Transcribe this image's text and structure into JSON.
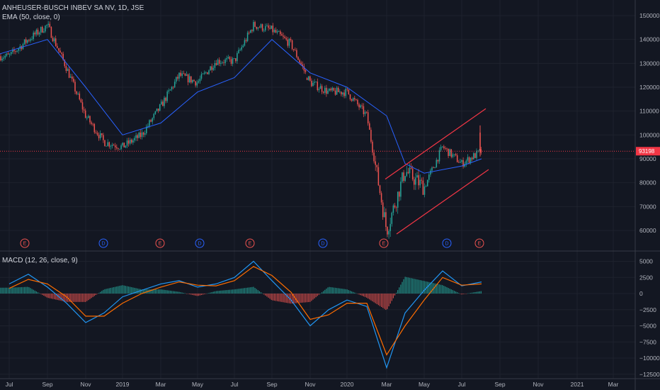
{
  "header": {
    "symbol": "ANHEUSER-BUSCH INBEV SA NV, 1D, JSE",
    "ema_label": "EMA (50, close, 0)",
    "macd_label": "MACD (12, 26, close, 9)"
  },
  "colors": {
    "background": "#131722",
    "up": "#26a69a",
    "down": "#ef5350",
    "ema": "#2962ff",
    "macd_line": "#2196f3",
    "signal_line": "#ff6d00",
    "price_line": "#f23645",
    "channel": "#f23645"
  },
  "chart_data": [
    {
      "type": "candlestick",
      "title": "ANHEUSER-BUSCH INBEV SA NV, 1D, JSE",
      "x_tick_labels": [
        "Jul",
        "Sep",
        "Nov",
        "2019",
        "Mar",
        "May",
        "Jul",
        "Sep",
        "Nov",
        "2020",
        "Mar",
        "May",
        "Jul",
        "Sep",
        "Nov",
        "2021",
        "Mar"
      ],
      "y_ticks": [
        60000,
        70000,
        80000,
        90000,
        100000,
        110000,
        120000,
        130000,
        140000,
        150000
      ],
      "y_tick_labels": [
        "60000",
        "70000",
        "80000",
        "90000",
        "100000",
        "110000",
        "120000",
        "130000",
        "140000",
        "150000"
      ],
      "ylim": [
        54000,
        152000
      ],
      "last_price": 93198,
      "last_price_label": "93198",
      "close_path": [
        [
          "Jul",
          133000
        ],
        [
          "Aug",
          140000
        ],
        [
          "Sep",
          146000
        ],
        [
          "Oct",
          128000
        ],
        [
          "Nov",
          108000
        ],
        [
          "Dec",
          97000
        ],
        [
          "2019",
          95000
        ],
        [
          "Feb",
          100000
        ],
        [
          "Mar",
          112000
        ],
        [
          "Apr",
          125000
        ],
        [
          "May",
          122000
        ],
        [
          "Jun",
          131000
        ],
        [
          "Jul",
          131000
        ],
        [
          "Aug",
          146000
        ],
        [
          "Sep",
          144000
        ],
        [
          "Oct",
          138000
        ],
        [
          "Nov",
          122000
        ],
        [
          "Dec",
          118000
        ],
        [
          "2020",
          118000
        ],
        [
          "Feb",
          108000
        ],
        [
          "Mar",
          60000
        ],
        [
          "Apr",
          85000
        ],
        [
          "May",
          78000
        ],
        [
          "Jun",
          95000
        ],
        [
          "Jul",
          88000
        ],
        [
          "Aug",
          93198
        ]
      ],
      "ema_path": [
        [
          "Jul",
          134000
        ],
        [
          "Sep",
          140000
        ],
        [
          "Nov",
          120000
        ],
        [
          "2019",
          100000
        ],
        [
          "Mar",
          105000
        ],
        [
          "May",
          118000
        ],
        [
          "Jul",
          124000
        ],
        [
          "Sep",
          140000
        ],
        [
          "Nov",
          126000
        ],
        [
          "2020",
          120000
        ],
        [
          "Mar",
          108000
        ],
        [
          "Apr",
          88000
        ],
        [
          "May",
          84000
        ],
        [
          "Jul",
          87000
        ],
        [
          "Aug",
          90000
        ]
      ],
      "events": [
        {
          "label": "E"
        },
        {
          "label": "D"
        },
        {
          "label": "E"
        },
        {
          "label": "D"
        },
        {
          "label": "E"
        },
        {
          "label": "D"
        },
        {
          "label": "E"
        },
        {
          "label": "D"
        },
        {
          "label": "E"
        }
      ]
    },
    {
      "type": "macd",
      "title": "MACD (12, 26, close, 9)",
      "y_ticks": [
        5000,
        2500,
        0,
        -2500,
        -5000,
        -7500,
        -10000,
        -12500
      ],
      "y_tick_labels": [
        "5000",
        "2500",
        "0",
        "−2500",
        "−5000",
        "−7500",
        "−10000",
        "−12500"
      ],
      "ylim": [
        -12500,
        6000
      ],
      "series": [
        {
          "name": "MACD",
          "values": [
            [
              "Jul",
              1500
            ],
            [
              "Aug",
              3000
            ],
            [
              "Sep",
              1000
            ],
            [
              "Oct",
              -1500
            ],
            [
              "Nov",
              -4500
            ],
            [
              "Dec",
              -3000
            ],
            [
              "2019",
              -500
            ],
            [
              "Feb",
              500
            ],
            [
              "Mar",
              1500
            ],
            [
              "Apr",
              2000
            ],
            [
              "May",
              1000
            ],
            [
              "Jun",
              1500
            ],
            [
              "Jul",
              2500
            ],
            [
              "Aug",
              5000
            ],
            [
              "Sep",
              2000
            ],
            [
              "Oct",
              -1000
            ],
            [
              "Nov",
              -5000
            ],
            [
              "Dec",
              -2500
            ],
            [
              "2020",
              -1000
            ],
            [
              "Feb",
              -2000
            ],
            [
              "Mar",
              -11500
            ],
            [
              "Apr",
              -3000
            ],
            [
              "May",
              500
            ],
            [
              "Jun",
              3500
            ],
            [
              "Jul",
              1200
            ],
            [
              "Aug",
              1800
            ]
          ]
        },
        {
          "name": "Signal",
          "values": [
            [
              "Jul",
              800
            ],
            [
              "Aug",
              2200
            ],
            [
              "Sep",
              1500
            ],
            [
              "Oct",
              -500
            ],
            [
              "Nov",
              -3500
            ],
            [
              "Dec",
              -3500
            ],
            [
              "2019",
              -1500
            ],
            [
              "Feb",
              0
            ],
            [
              "Mar",
              1000
            ],
            [
              "Apr",
              1800
            ],
            [
              "May",
              1300
            ],
            [
              "Jun",
              1200
            ],
            [
              "Jul",
              2000
            ],
            [
              "Aug",
              4200
            ],
            [
              "Sep",
              2800
            ],
            [
              "Oct",
              200
            ],
            [
              "Nov",
              -4000
            ],
            [
              "Dec",
              -3300
            ],
            [
              "2020",
              -1500
            ],
            [
              "Feb",
              -1500
            ],
            [
              "Mar",
              -9500
            ],
            [
              "Apr",
              -5000
            ],
            [
              "May",
              -1000
            ],
            [
              "Jun",
              2500
            ],
            [
              "Jul",
              1300
            ],
            [
              "Aug",
              1500
            ]
          ]
        }
      ]
    }
  ]
}
